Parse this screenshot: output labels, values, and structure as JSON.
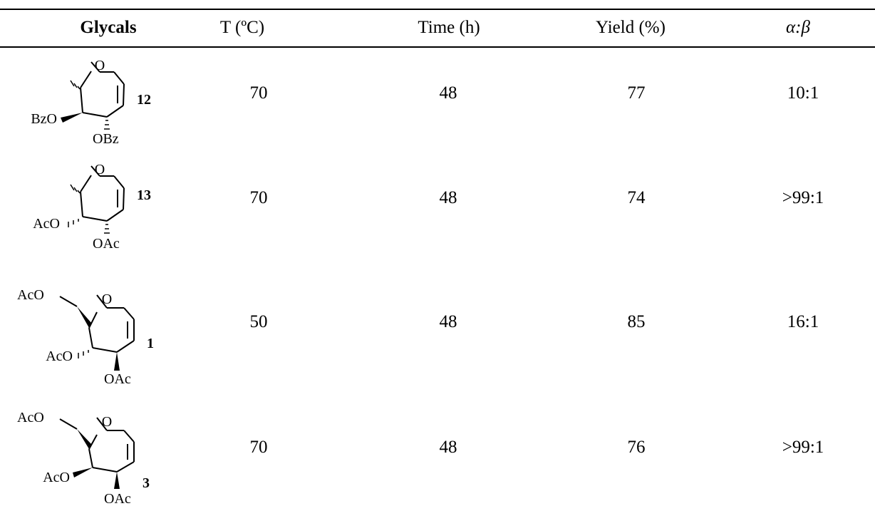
{
  "table": {
    "headers": [
      "Glycals",
      "T (ºC)",
      "Time (h)",
      "Yield (%)",
      "α:β"
    ],
    "rows": [
      {
        "compound": "12",
        "labels": {
          "ring_o": "O",
          "c4": "BzO",
          "c3": "OBz"
        },
        "temperature": "70",
        "time": "48",
        "yield": "77",
        "ratio": "10:1"
      },
      {
        "compound": "13",
        "labels": {
          "ring_o": "O",
          "c4": "AcO",
          "c3": "OAc"
        },
        "temperature": "70",
        "time": "48",
        "yield": "74",
        "ratio": ">99:1"
      },
      {
        "compound": "1",
        "labels": {
          "c6": "AcO",
          "ring_o": "O",
          "c4": "AcO",
          "c3": "OAc"
        },
        "temperature": "50",
        "time": "48",
        "yield": "85",
        "ratio": "16:1"
      },
      {
        "compound": "3",
        "labels": {
          "c6": "AcO",
          "ring_o": "O",
          "c4": "AcO",
          "c3": "OAc"
        },
        "temperature": "70",
        "time": "48",
        "yield": "76",
        "ratio": ">99:1"
      }
    ]
  }
}
